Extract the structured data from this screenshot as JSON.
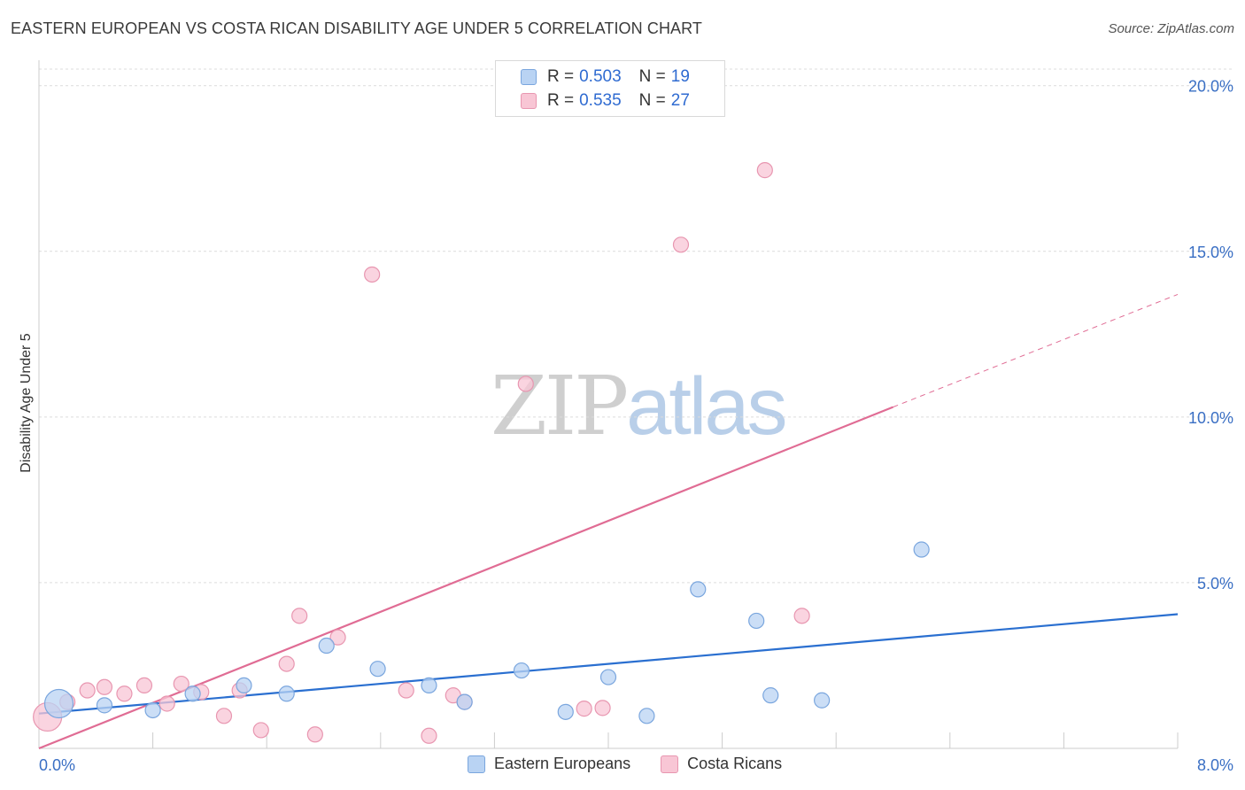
{
  "title": "EASTERN EUROPEAN VS COSTA RICAN DISABILITY AGE UNDER 5 CORRELATION CHART",
  "source": "Source: ZipAtlas.com",
  "watermark": {
    "zip": "ZIP",
    "atlas": "atlas"
  },
  "colors": {
    "blue_fill": "#b9d3f3",
    "blue_stroke": "#7aa6de",
    "blue_line": "#2a6fd0",
    "pink_fill": "#f8c6d5",
    "pink_stroke": "#e896b0",
    "pink_line": "#e06c94",
    "grid": "#dcdcdc",
    "tick_label": "#3a6fc4"
  },
  "legend": {
    "rows": [
      {
        "r_label": "R =",
        "r_value": "0.503",
        "n_label": "N =",
        "n_value": "19"
      },
      {
        "r_label": "R =",
        "r_value": "0.535",
        "n_label": "N =",
        "n_value": "27"
      }
    ]
  },
  "bottom_legend": [
    "Eastern Europeans",
    "Costa Ricans"
  ],
  "chart_data": {
    "type": "scatter",
    "title": "EASTERN EUROPEAN VS COSTA RICAN DISABILITY AGE UNDER 5 CORRELATION CHART",
    "xlabel": "",
    "ylabel": "Disability Age Under 5",
    "xlim": [
      0,
      8
    ],
    "ylim": [
      0,
      20.5
    ],
    "x_tick_labels": [
      "0.0%",
      "8.0%"
    ],
    "y_ticks": [
      5,
      10,
      15,
      20
    ],
    "y_tick_labels": [
      "5.0%",
      "10.0%",
      "15.0%",
      "20.0%"
    ],
    "series": [
      {
        "name": "Eastern Europeans",
        "r": 0.503,
        "n": 19,
        "points": [
          {
            "x": 0.14,
            "y": 1.35,
            "size": "large"
          },
          {
            "x": 0.46,
            "y": 1.3
          },
          {
            "x": 0.8,
            "y": 1.15
          },
          {
            "x": 1.08,
            "y": 1.65
          },
          {
            "x": 1.44,
            "y": 1.9
          },
          {
            "x": 1.74,
            "y": 1.65
          },
          {
            "x": 2.02,
            "y": 3.1
          },
          {
            "x": 2.38,
            "y": 2.4
          },
          {
            "x": 2.74,
            "y": 1.9
          },
          {
            "x": 2.99,
            "y": 1.4
          },
          {
            "x": 3.39,
            "y": 2.35
          },
          {
            "x": 3.7,
            "y": 1.1
          },
          {
            "x": 4.0,
            "y": 2.15
          },
          {
            "x": 4.27,
            "y": 0.98
          },
          {
            "x": 4.63,
            "y": 4.8
          },
          {
            "x": 5.04,
            "y": 3.85
          },
          {
            "x": 5.14,
            "y": 1.6
          },
          {
            "x": 5.5,
            "y": 1.45
          },
          {
            "x": 6.2,
            "y": 6.0
          }
        ],
        "trend": {
          "x0": 0,
          "y0": 1.05,
          "x1": 8,
          "y1": 4.05
        }
      },
      {
        "name": "Costa Ricans",
        "r": 0.535,
        "n": 27,
        "points": [
          {
            "x": 0.06,
            "y": 0.95,
            "size": "large"
          },
          {
            "x": 0.2,
            "y": 1.4
          },
          {
            "x": 0.34,
            "y": 1.75
          },
          {
            "x": 0.46,
            "y": 1.85
          },
          {
            "x": 0.6,
            "y": 1.65
          },
          {
            "x": 0.74,
            "y": 1.9
          },
          {
            "x": 0.9,
            "y": 1.35
          },
          {
            "x": 1.0,
            "y": 1.95
          },
          {
            "x": 1.14,
            "y": 1.7
          },
          {
            "x": 1.3,
            "y": 0.98
          },
          {
            "x": 1.41,
            "y": 1.75
          },
          {
            "x": 1.56,
            "y": 0.55
          },
          {
            "x": 1.74,
            "y": 2.55
          },
          {
            "x": 1.83,
            "y": 4.0
          },
          {
            "x": 1.94,
            "y": 0.42
          },
          {
            "x": 2.1,
            "y": 3.35
          },
          {
            "x": 2.34,
            "y": 14.3
          },
          {
            "x": 2.58,
            "y": 1.75
          },
          {
            "x": 2.74,
            "y": 0.38
          },
          {
            "x": 2.91,
            "y": 1.6
          },
          {
            "x": 2.99,
            "y": 1.4
          },
          {
            "x": 3.42,
            "y": 11.0
          },
          {
            "x": 3.83,
            "y": 1.2
          },
          {
            "x": 3.96,
            "y": 1.22
          },
          {
            "x": 4.51,
            "y": 15.2
          },
          {
            "x": 5.1,
            "y": 17.45
          },
          {
            "x": 5.36,
            "y": 4.0
          }
        ],
        "trend": {
          "x0": 0,
          "y0": 0.0,
          "x1": 6.0,
          "y1": 10.3
        },
        "trend_dashed": {
          "x0": 6.0,
          "y0": 10.3,
          "x1": 8.0,
          "y1": 13.7
        }
      }
    ]
  }
}
